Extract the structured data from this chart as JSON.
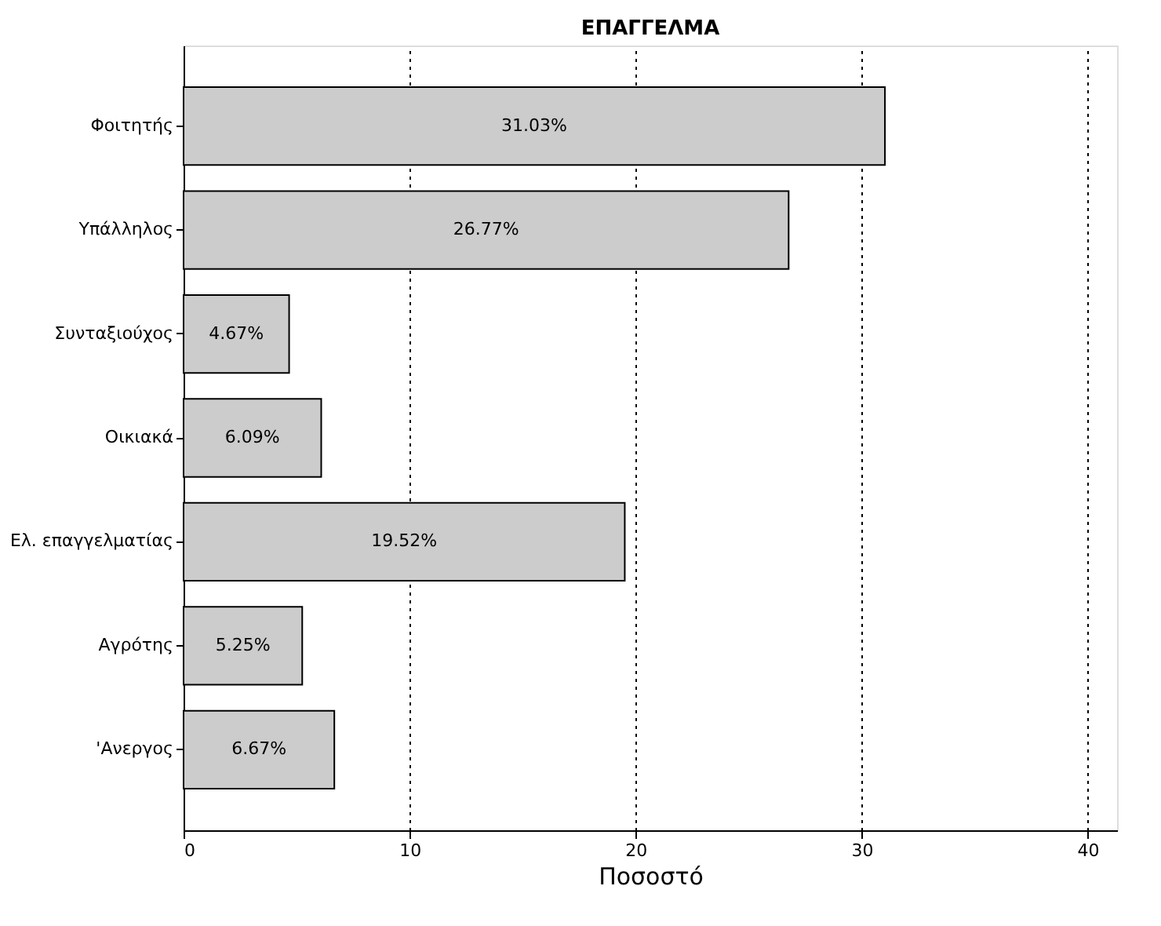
{
  "chart_data": {
    "type": "bar",
    "orientation": "horizontal",
    "title": "ΕΠΑΓΓΕΛΜΑ",
    "xlabel": "Ποσοστό",
    "categories": [
      "Φοιτητής",
      "Υπάλληλος",
      "Συνταξιούχος",
      "Οικιακά",
      "Ελ. επαγγελματίας",
      "Αγρότης",
      "'Ανεργος"
    ],
    "values": [
      31.03,
      26.77,
      4.67,
      6.09,
      19.52,
      5.25,
      6.67
    ],
    "value_labels": [
      "31.03%",
      "26.77%",
      "4.67%",
      "6.09%",
      "19.52%",
      "5.25%",
      "6.67%"
    ],
    "color": "#cccccc",
    "xlim": [
      0,
      41.3
    ],
    "xticks": [
      0,
      10,
      20,
      30,
      40
    ],
    "grid": "x"
  }
}
